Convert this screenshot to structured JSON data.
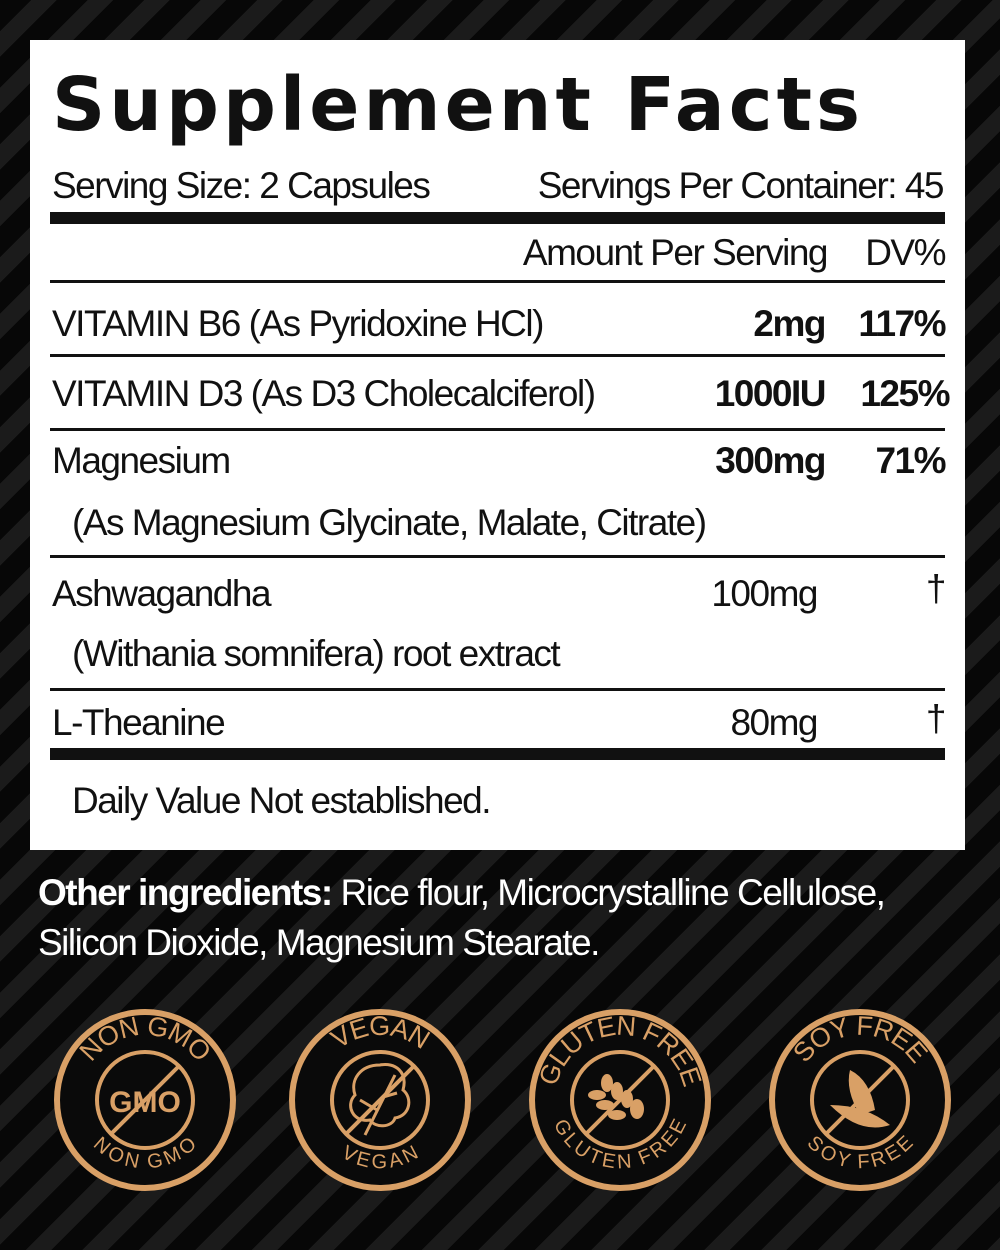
{
  "title": "Supplement Facts",
  "serving_size": "Serving Size: 2 Capsules",
  "servings_per_container": "Servings Per Container: 45",
  "header": {
    "amount": "Amount Per Serving",
    "dv": "DV%"
  },
  "rows": [
    {
      "name": "VITAMIN B6 (As Pyridoxine HCl)",
      "amount": "2mg",
      "dv": "117%"
    },
    {
      "name": "VITAMIN D3 (As D3 Cholecalciferol)",
      "amount": "1000IU",
      "dv": "125%"
    },
    {
      "name": "Magnesium",
      "sub": "(As Magnesium Glycinate, Malate, Citrate)",
      "amount": "300mg",
      "dv": "71%"
    },
    {
      "name": "Ashwagandha",
      "sub": "(Withania somnifera) root extract",
      "amount": "100mg",
      "dv": "†"
    },
    {
      "name": "L-Theanine",
      "amount": "80mg",
      "dv": "†"
    }
  ],
  "footnote": "Daily Value Not established.",
  "other_ingredients": {
    "label": "Other ingredients:",
    "text": " Rice flour, Microcrystalline Cellulose, Silicon Dioxide, Magnesium Stearate."
  },
  "badges": [
    {
      "top": "NON GMO",
      "bottom": "NON GMO",
      "center": "GMO",
      "icon": "gmo-text-icon"
    },
    {
      "top": "VEGAN",
      "bottom": "VEGAN",
      "icon": "leaf-icon"
    },
    {
      "top": "GLUTEN FREE",
      "bottom": "GLUTEN FREE",
      "icon": "wheat-icon"
    },
    {
      "top": "SOY FREE",
      "bottom": "SOY FREE",
      "icon": "soybean-icon"
    }
  ],
  "colors": {
    "gold": "#d9a066",
    "background": "#111111",
    "panel": "#ffffff"
  }
}
